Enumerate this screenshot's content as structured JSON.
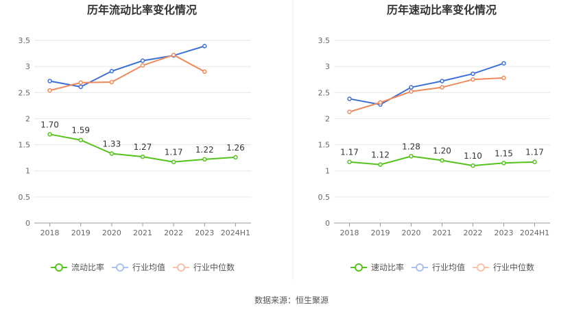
{
  "source_text": "数据来源：恒生聚源",
  "chart_data": [
    {
      "type": "line",
      "title": "历年流动比率变化情况",
      "xlabel": "",
      "ylabel": "",
      "categories": [
        "2018",
        "2019",
        "2020",
        "2021",
        "2022",
        "2023",
        "2024H1"
      ],
      "ylim": [
        0,
        3.5
      ],
      "yticks": [
        0,
        0.5,
        1,
        1.5,
        2,
        2.5,
        3,
        3.5
      ],
      "ytick_labels": [
        "0",
        "0.5",
        "1",
        "1.5",
        "2",
        "2.5",
        "3",
        "3.5"
      ],
      "grid": true,
      "legend_position": "bottom",
      "series": [
        {
          "name": "流动比率",
          "color": "#52c41a",
          "values": [
            1.7,
            1.59,
            1.33,
            1.27,
            1.17,
            1.22,
            1.26
          ],
          "labels": [
            "1.70",
            "1.59",
            "1.33",
            "1.27",
            "1.17",
            "1.22",
            "1.26"
          ]
        },
        {
          "name": "行业均值",
          "color": "#3b6fd8",
          "values": [
            2.72,
            2.61,
            2.91,
            3.11,
            3.21,
            3.39,
            null
          ]
        },
        {
          "name": "行业中位数",
          "color": "#f0895a",
          "values": [
            2.54,
            2.69,
            2.7,
            3.02,
            3.22,
            2.9,
            null
          ]
        }
      ]
    },
    {
      "type": "line",
      "title": "历年速动比率变化情况",
      "xlabel": "",
      "ylabel": "",
      "categories": [
        "2018",
        "2019",
        "2020",
        "2021",
        "2022",
        "2023",
        "2024H1"
      ],
      "ylim": [
        0,
        3.5
      ],
      "yticks": [
        0,
        0.5,
        1,
        1.5,
        2,
        2.5,
        3,
        3.5
      ],
      "ytick_labels": [
        "0",
        "0.5",
        "1",
        "1.5",
        "2",
        "2.5",
        "3",
        "3.5"
      ],
      "grid": true,
      "legend_position": "bottom",
      "series": [
        {
          "name": "速动比率",
          "color": "#52c41a",
          "values": [
            1.17,
            1.12,
            1.28,
            1.2,
            1.1,
            1.15,
            1.17
          ],
          "labels": [
            "1.17",
            "1.12",
            "1.28",
            "1.20",
            "1.10",
            "1.15",
            "1.17"
          ]
        },
        {
          "name": "行业均值",
          "color": "#3b6fd8",
          "values": [
            2.38,
            2.27,
            2.6,
            2.72,
            2.86,
            3.06,
            null
          ]
        },
        {
          "name": "行业中位数",
          "color": "#f0895a",
          "values": [
            2.13,
            2.31,
            2.52,
            2.6,
            2.75,
            2.78,
            null
          ]
        }
      ]
    }
  ]
}
